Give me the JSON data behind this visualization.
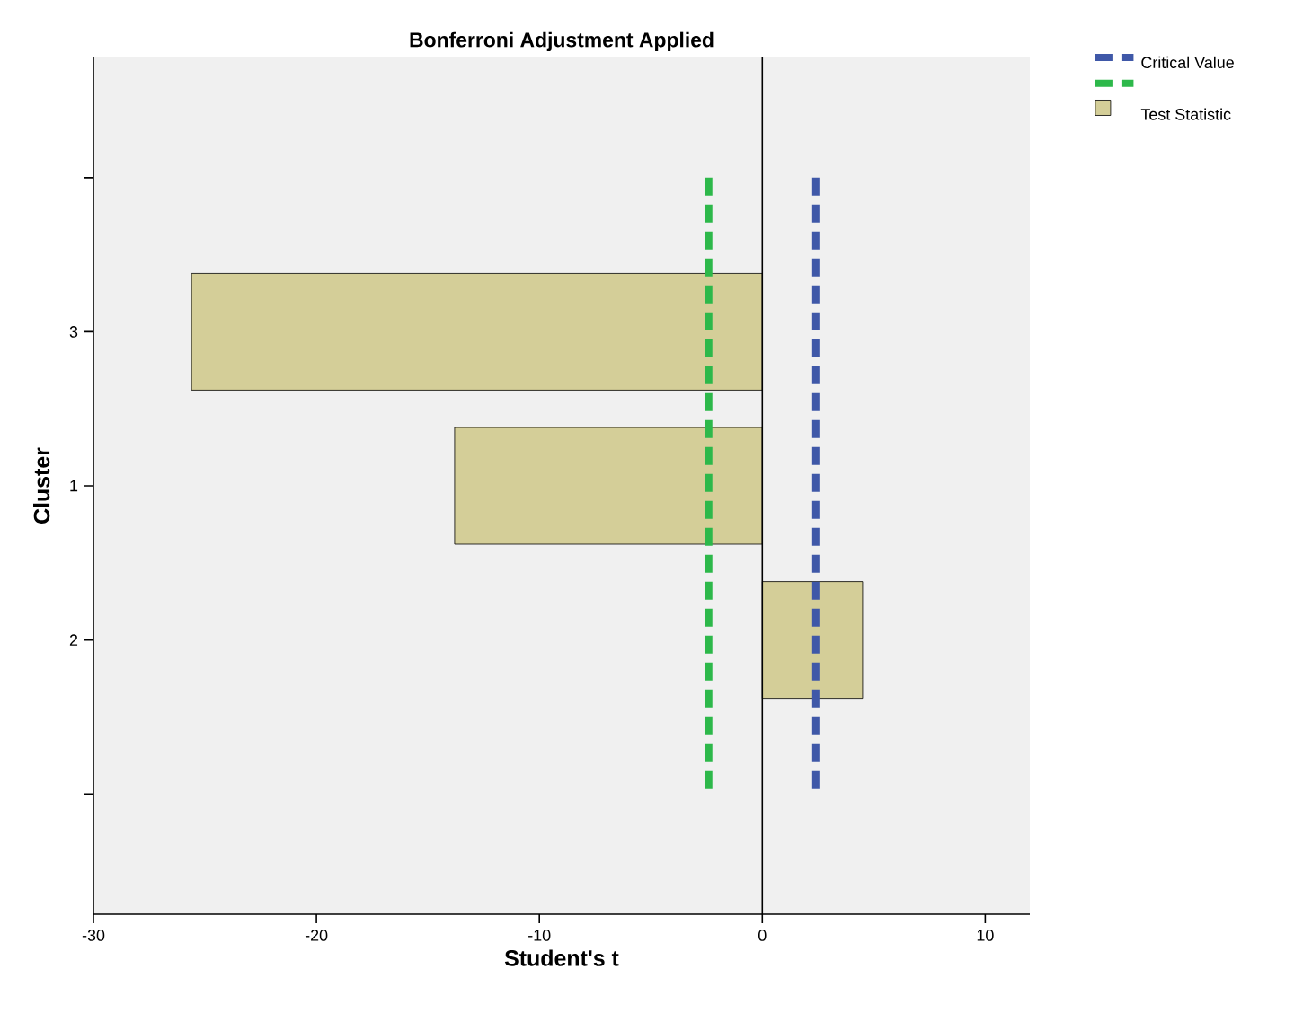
{
  "chart_data": {
    "type": "bar",
    "orientation": "horizontal",
    "title": "Bonferroni Adjustment Applied",
    "xlabel": "Student's t",
    "ylabel": "Cluster",
    "categories": [
      null,
      "3",
      "1",
      "2",
      null
    ],
    "series": [
      {
        "name": "Test Statistic",
        "color": "#d4ce98",
        "values": [
          null,
          -25.6,
          -13.8,
          4.5,
          null
        ]
      }
    ],
    "ref_lines": [
      {
        "axis": "x",
        "value": 2.4,
        "label": "Critical Value",
        "color": "#3f58a8",
        "line_style": "dashed"
      },
      {
        "axis": "x",
        "value": -2.4,
        "color": "#2db84a",
        "line_style": "dashed"
      }
    ],
    "xlim": [
      -30,
      12
    ],
    "xticks": [
      -30,
      -20,
      -10,
      0,
      10
    ],
    "legend": "top right"
  }
}
